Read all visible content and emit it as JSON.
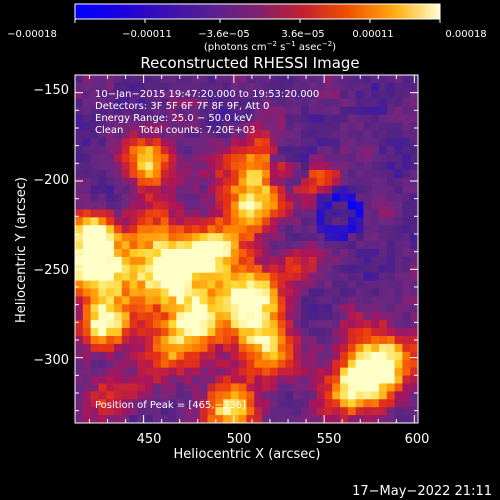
{
  "colorbar": {
    "ticks": [
      "−0.00018",
      "−0.00011",
      "−3.6e−05",
      "3.6e−05",
      "0.00011",
      "0.00018"
    ],
    "unit_parts": [
      "(photons cm",
      "−2",
      " s",
      "−1",
      " asec",
      "−2",
      ")"
    ]
  },
  "plot": {
    "title": "Reconstructed RHESSI Image",
    "xlabel": "Heliocentric X (arcsec)",
    "ylabel": "Heliocentric Y (arcsec)",
    "xticks": [
      "450",
      "500",
      "550",
      "600"
    ],
    "yticks": [
      "−150",
      "−200",
      "−250",
      "−300"
    ],
    "xrange": [
      412,
      602
    ],
    "yrange": [
      -337,
      -140
    ],
    "info_lines": [
      "10−Jan−2015 19:47:20.000 to 19:53:20.000",
      "Detectors: 3F 5F 6F 7F 8F 9F, Att 0",
      "Energy Range: 25.0 − 50.0 keV",
      "Clean     Total counts: 7.20E+03"
    ],
    "peak_text": "Position of Peak = [465,−336]"
  },
  "footer": {
    "timestamp": "17−May−2022 21:11"
  },
  "colors": {
    "background": "#000000",
    "colormap": [
      "#0000ff",
      "#2a00d8",
      "#55208a",
      "#702890",
      "#a0186a",
      "#e83010",
      "#ff7a00",
      "#ffd020",
      "#ffffc0"
    ]
  }
}
